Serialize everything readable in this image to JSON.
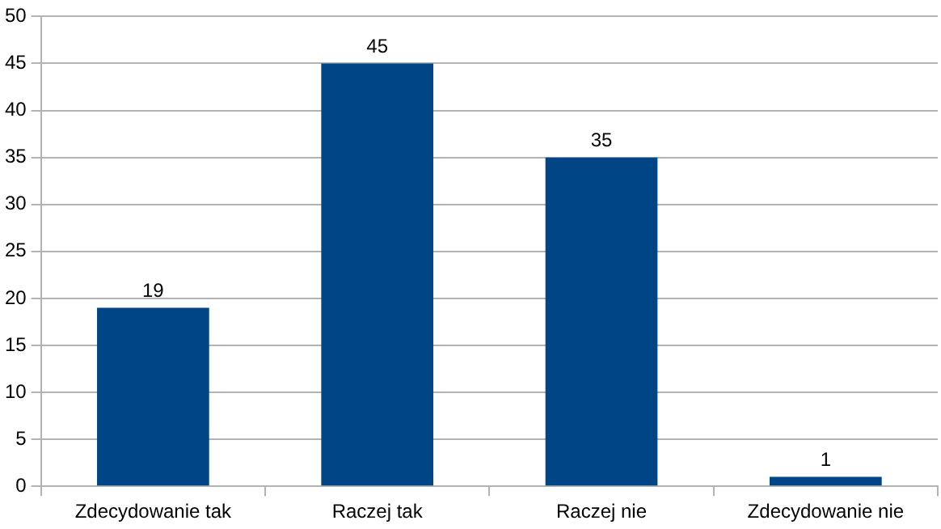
{
  "chart_data": {
    "type": "bar",
    "categories": [
      "Zdecydowanie tak",
      "Raczej tak",
      "Raczej nie",
      "Zdecydowanie nie"
    ],
    "values": [
      19,
      45,
      35,
      1
    ],
    "color": "#004586",
    "ylim": [
      0,
      50
    ],
    "yticks": [
      0,
      5,
      10,
      15,
      20,
      25,
      30,
      35,
      40,
      45,
      50
    ],
    "grid": "y",
    "legend": false,
    "data_labels": true
  }
}
